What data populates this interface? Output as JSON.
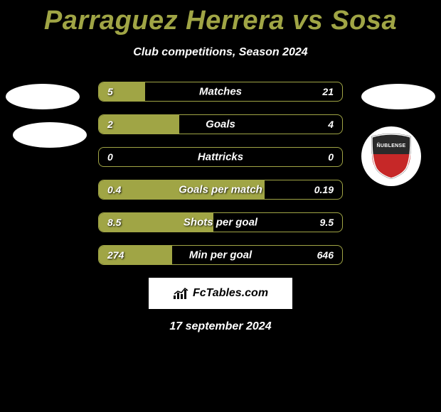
{
  "title": "Parraguez Herrera vs Sosa",
  "title_color": "#a0a545",
  "subtitle": "Club competitions, Season 2024",
  "subtitle_color": "#ffffff",
  "background_color": "#000000",
  "left_color": "#a0a545",
  "border_color": "#a0a545",
  "text_color": "#ffffff",
  "date": "17 september 2024",
  "brand": "FcTables.com",
  "club_right_name": "ÑUBLENSE",
  "club_right_shield_top": "#2a2a2a",
  "club_right_shield_bottom": "#c62828",
  "bars": [
    {
      "label": "Matches",
      "left_val": "5",
      "right_val": "21",
      "left_pct": 19
    },
    {
      "label": "Goals",
      "left_val": "2",
      "right_val": "4",
      "left_pct": 33
    },
    {
      "label": "Hattricks",
      "left_val": "0",
      "right_val": "0",
      "left_pct": 0
    },
    {
      "label": "Goals per match",
      "left_val": "0.4",
      "right_val": "0.19",
      "left_pct": 68
    },
    {
      "label": "Shots per goal",
      "left_val": "8.5",
      "right_val": "9.5",
      "left_pct": 47
    },
    {
      "label": "Min per goal",
      "left_val": "274",
      "right_val": "646",
      "left_pct": 30
    }
  ]
}
